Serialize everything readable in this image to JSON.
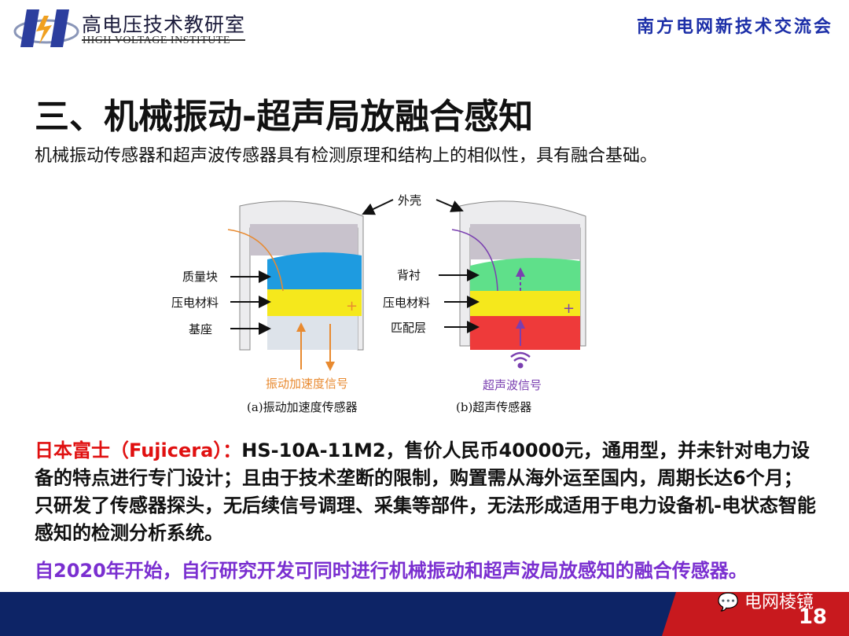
{
  "header": {
    "logo_cn": "高电压技术教研室",
    "logo_en": "HIGH VOLTAGE INSTITUTE",
    "conference": "南方电网新技术交流会"
  },
  "title": "三、机械振动-超声局放融合感知",
  "subtitle": "机械振动传感器和超声波传感器具有检测原理和结构上的相似性，具有融合基础。",
  "figure": {
    "shell_label": "外壳",
    "a": {
      "labels": [
        "质量块",
        "压电材料",
        "基座"
      ],
      "signal": "振动加速度信号",
      "caption": "(a)振动加速度传感器"
    },
    "b": {
      "labels": [
        "背衬",
        "压电材料",
        "匹配层"
      ],
      "signal": "超声波信号",
      "caption": "(b)超声传感器"
    },
    "colors": {
      "mass": "#1e9be0",
      "piezo": "#f5e81c",
      "base": "#dde3ea",
      "backing": "#5fe08a",
      "matching": "#ee3a3a",
      "vib_signal": "#e88a30",
      "us_signal": "#7a3fb0"
    }
  },
  "paragraph": {
    "lead": "日本富士（Fujicera）：",
    "body": "HS-10A-11M2，售价人民币40000元，通用型，并未针对电力设备的特点进行专门设计；且由于技术垄断的限制，购置需从海外运至国内，周期长达6个月；只研发了传感器探头，无后续信号调理、采集等部件，无法形成适用于电力设备机-电状态智能感知的检测分析系统。"
  },
  "conclusion": "自2020年开始，自行研究开发可同时进行机械振动和超声波局放感知的融合传感器。",
  "footer": {
    "watermark": "电网棱镜",
    "page_number": "18"
  }
}
